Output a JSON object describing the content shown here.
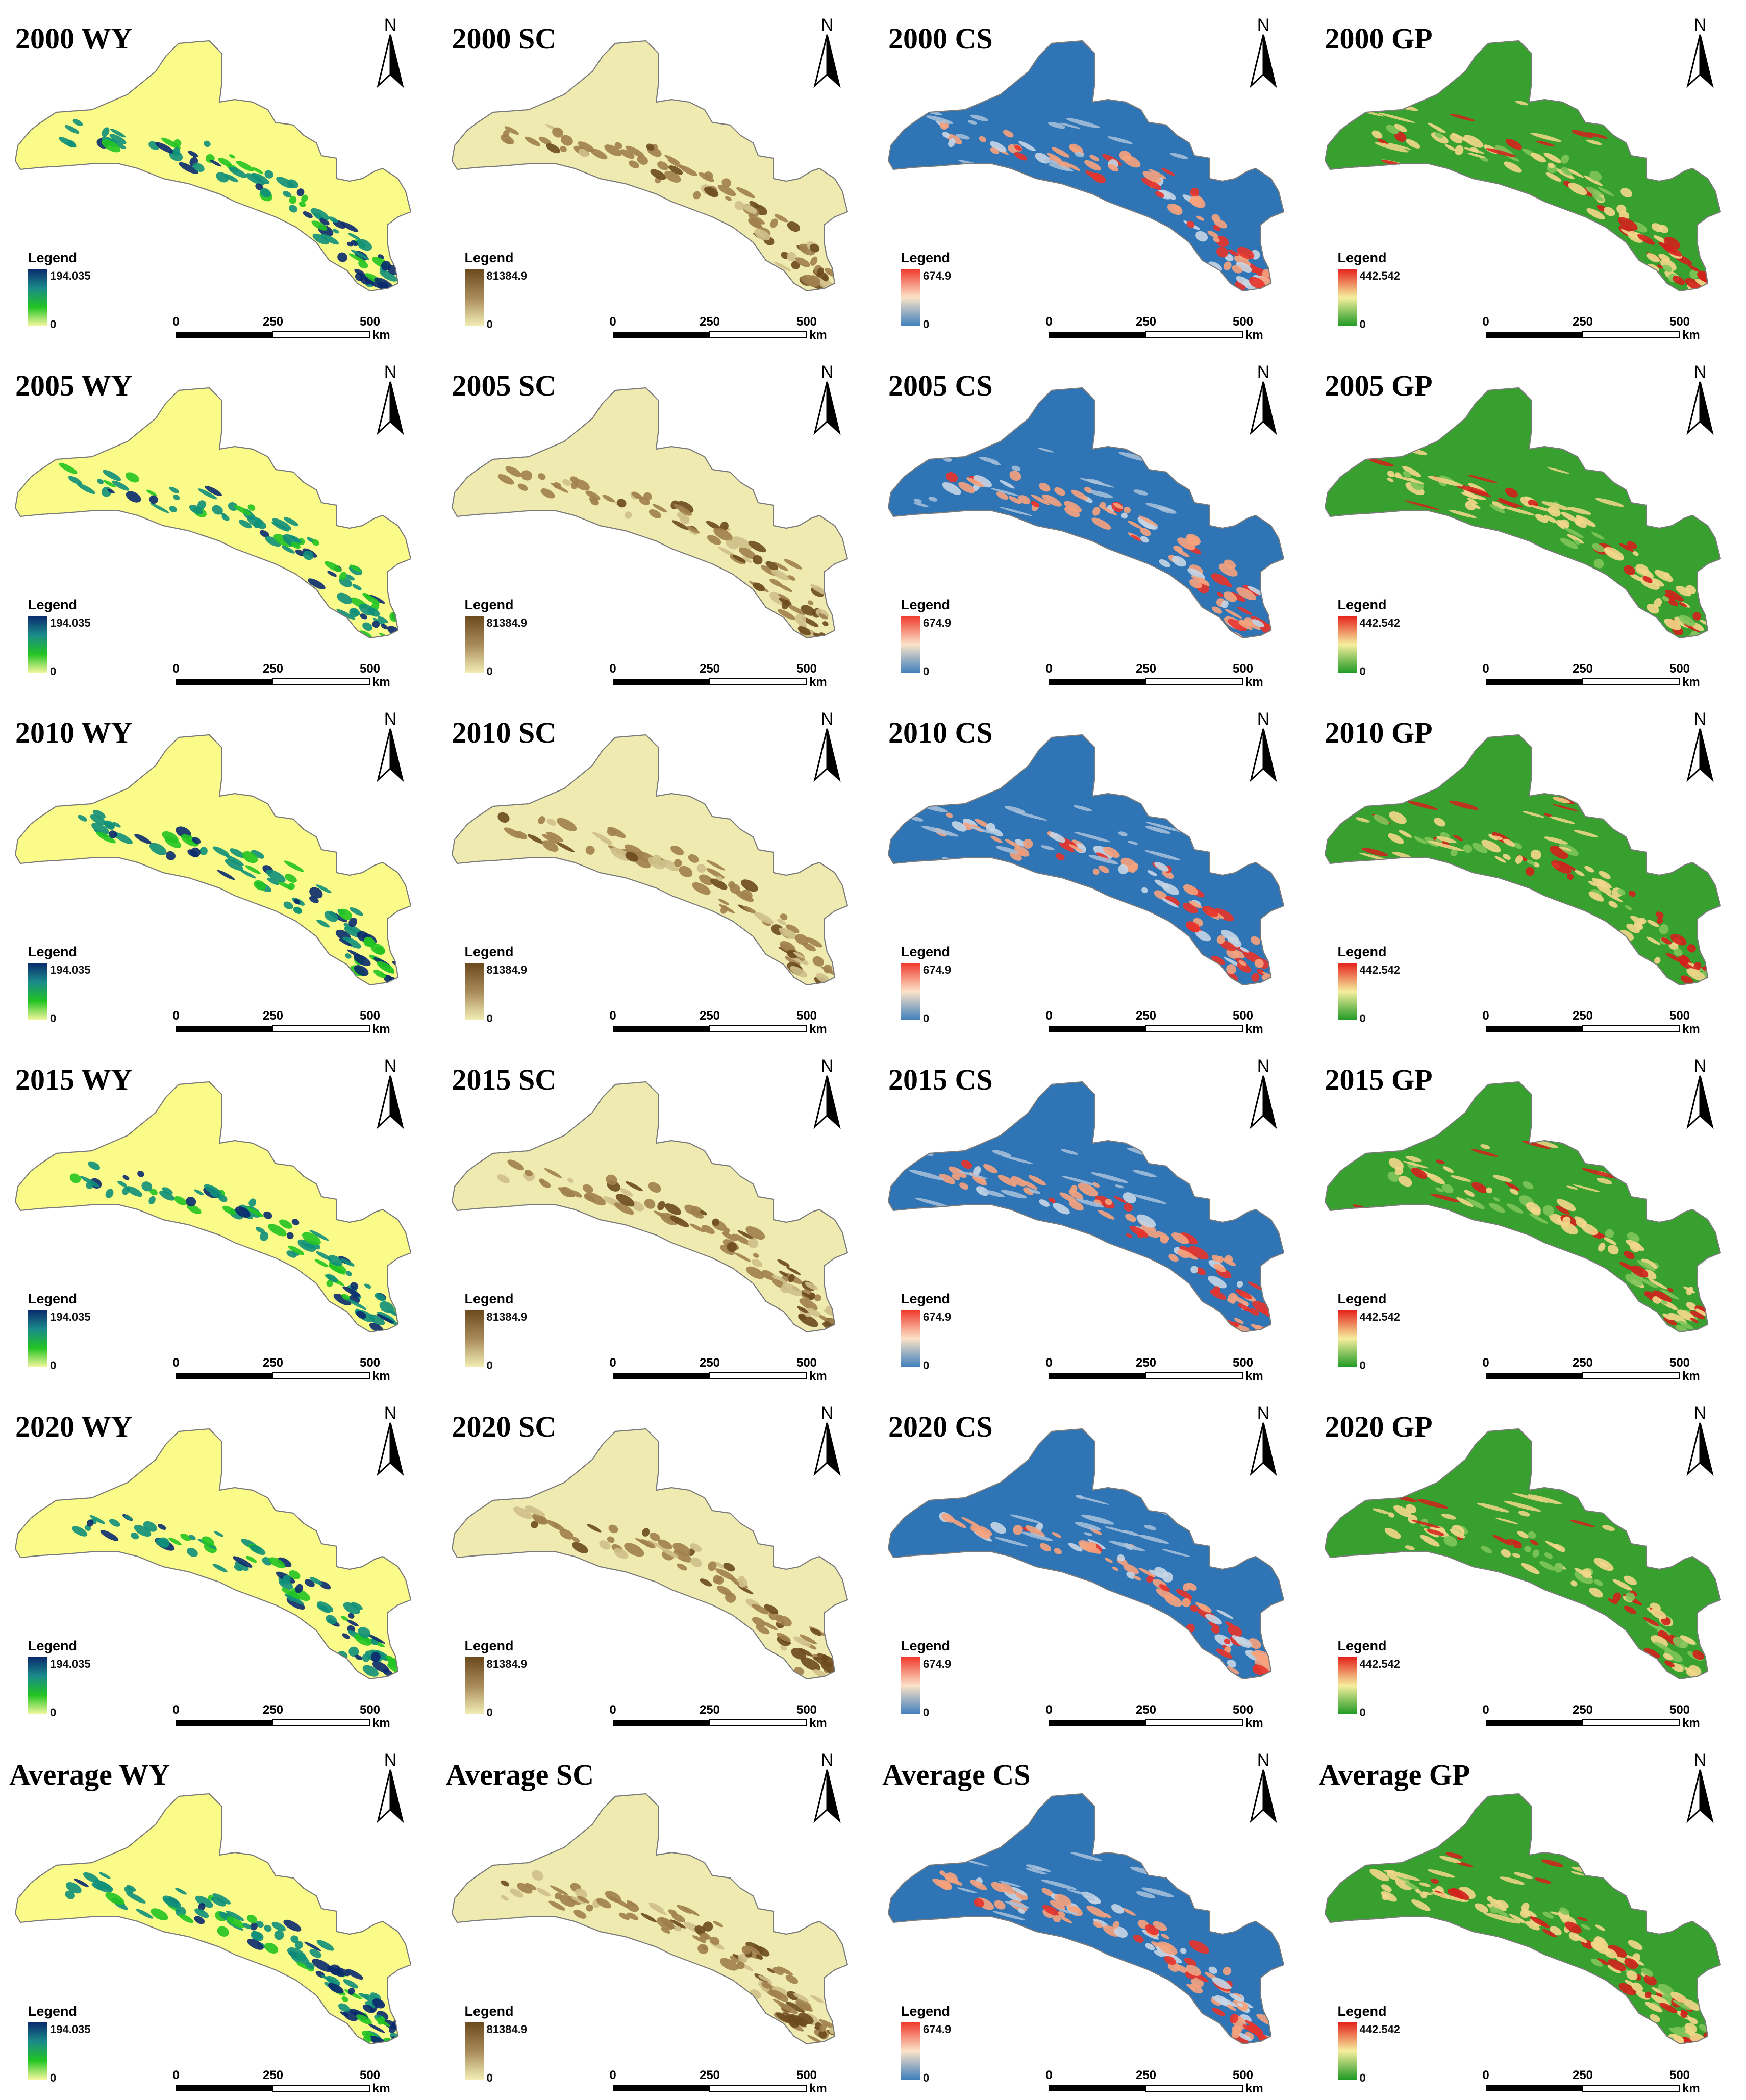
{
  "panels": [
    {
      "title": "2000 WY",
      "indicator": "WY",
      "legend_title": "Legend",
      "legend_max": "194.035",
      "legend_min": "0"
    },
    {
      "title": "2000 SC",
      "indicator": "SC",
      "legend_title": "Legend",
      "legend_max": "81384.9",
      "legend_min": "0"
    },
    {
      "title": "2000 CS",
      "indicator": "CS",
      "legend_title": "Legend",
      "legend_max": "674.9",
      "legend_min": "0"
    },
    {
      "title": "2000 GP",
      "indicator": "GP",
      "legend_title": "Legend",
      "legend_max": "442.542",
      "legend_min": "0"
    },
    {
      "title": "2005 WY",
      "indicator": "WY",
      "legend_title": "Legend",
      "legend_max": "194.035",
      "legend_min": "0"
    },
    {
      "title": "2005 SC",
      "indicator": "SC",
      "legend_title": "Legend",
      "legend_max": "81384.9",
      "legend_min": "0"
    },
    {
      "title": "2005 CS",
      "indicator": "CS",
      "legend_title": "Legend",
      "legend_max": "674.9",
      "legend_min": "0"
    },
    {
      "title": "2005 GP",
      "indicator": "GP",
      "legend_title": "Legend",
      "legend_max": "442.542",
      "legend_min": "0"
    },
    {
      "title": "2010 WY",
      "indicator": "WY",
      "legend_title": "Legend",
      "legend_max": "194.035",
      "legend_min": "0"
    },
    {
      "title": "2010 SC",
      "indicator": "SC",
      "legend_title": "Legend",
      "legend_max": "81384.9",
      "legend_min": "0"
    },
    {
      "title": "2010 CS",
      "indicator": "CS",
      "legend_title": "Legend",
      "legend_max": "674.9",
      "legend_min": "0"
    },
    {
      "title": "2010 GP",
      "indicator": "GP",
      "legend_title": "Legend",
      "legend_max": "442.542",
      "legend_min": "0"
    },
    {
      "title": "2015 WY",
      "indicator": "WY",
      "legend_title": "Legend",
      "legend_max": "194.035",
      "legend_min": "0"
    },
    {
      "title": "2015 SC",
      "indicator": "SC",
      "legend_title": "Legend",
      "legend_max": "81384.9",
      "legend_min": "0"
    },
    {
      "title": "2015 CS",
      "indicator": "CS",
      "legend_title": "Legend",
      "legend_max": "674.9",
      "legend_min": "0"
    },
    {
      "title": "2015 GP",
      "indicator": "GP",
      "legend_title": "Legend",
      "legend_max": "442.542",
      "legend_min": "0"
    },
    {
      "title": "2020 WY",
      "indicator": "WY",
      "legend_title": "Legend",
      "legend_max": "194.035",
      "legend_min": "0"
    },
    {
      "title": "2020 SC",
      "indicator": "SC",
      "legend_title": "Legend",
      "legend_max": "81384.9",
      "legend_min": "0"
    },
    {
      "title": "2020 CS",
      "indicator": "CS",
      "legend_title": "Legend",
      "legend_max": "674.9",
      "legend_min": "0"
    },
    {
      "title": "2020 GP",
      "indicator": "GP",
      "legend_title": "Legend",
      "legend_max": "442.542",
      "legend_min": "0"
    },
    {
      "title": "Average WY",
      "indicator": "WY",
      "legend_title": "Legend",
      "legend_max": "194.035",
      "legend_min": "0"
    },
    {
      "title": "Average SC",
      "indicator": "SC",
      "legend_title": "Legend",
      "legend_max": "81384.9",
      "legend_min": "0"
    },
    {
      "title": "Average CS",
      "indicator": "CS",
      "legend_title": "Legend",
      "legend_max": "674.9",
      "legend_min": "0"
    },
    {
      "title": "Average GP",
      "indicator": "GP",
      "legend_title": "Legend",
      "legend_max": "442.542",
      "legend_min": "0"
    }
  ],
  "north_label": "N",
  "scale": {
    "ticks": [
      "0",
      "250",
      "500"
    ],
    "unit": "km"
  },
  "palettes": {
    "WY": {
      "base": "#fbfb8a",
      "high": "#0a2a6e",
      "mid": "#0f8f7a",
      "low": "#22c422",
      "ramp": [
        "#0a2a6e",
        "#1a8a8a",
        "#22c422",
        "#f7f8a0"
      ]
    },
    "SC": {
      "base": "#eeeab0",
      "high": "#6b4a1e",
      "mid": "#a0804c",
      "low": "#cfc08a",
      "ramp": [
        "#6b4a1e",
        "#a88a5a",
        "#f3eeb6"
      ]
    },
    "CS": {
      "base": "#2f74b5",
      "high": "#e8332a",
      "mid": "#f6a27c",
      "low": "#c7d6e4",
      "ramp": [
        "#f03a2e",
        "#fbe3c8",
        "#3e7fbd"
      ]
    },
    "GP": {
      "base": "#38a02f",
      "high": "#d3201c",
      "mid": "#f3d78a",
      "low": "#7fc45a",
      "ramp": [
        "#e5221c",
        "#f6ee9e",
        "#1f9a24"
      ]
    }
  }
}
